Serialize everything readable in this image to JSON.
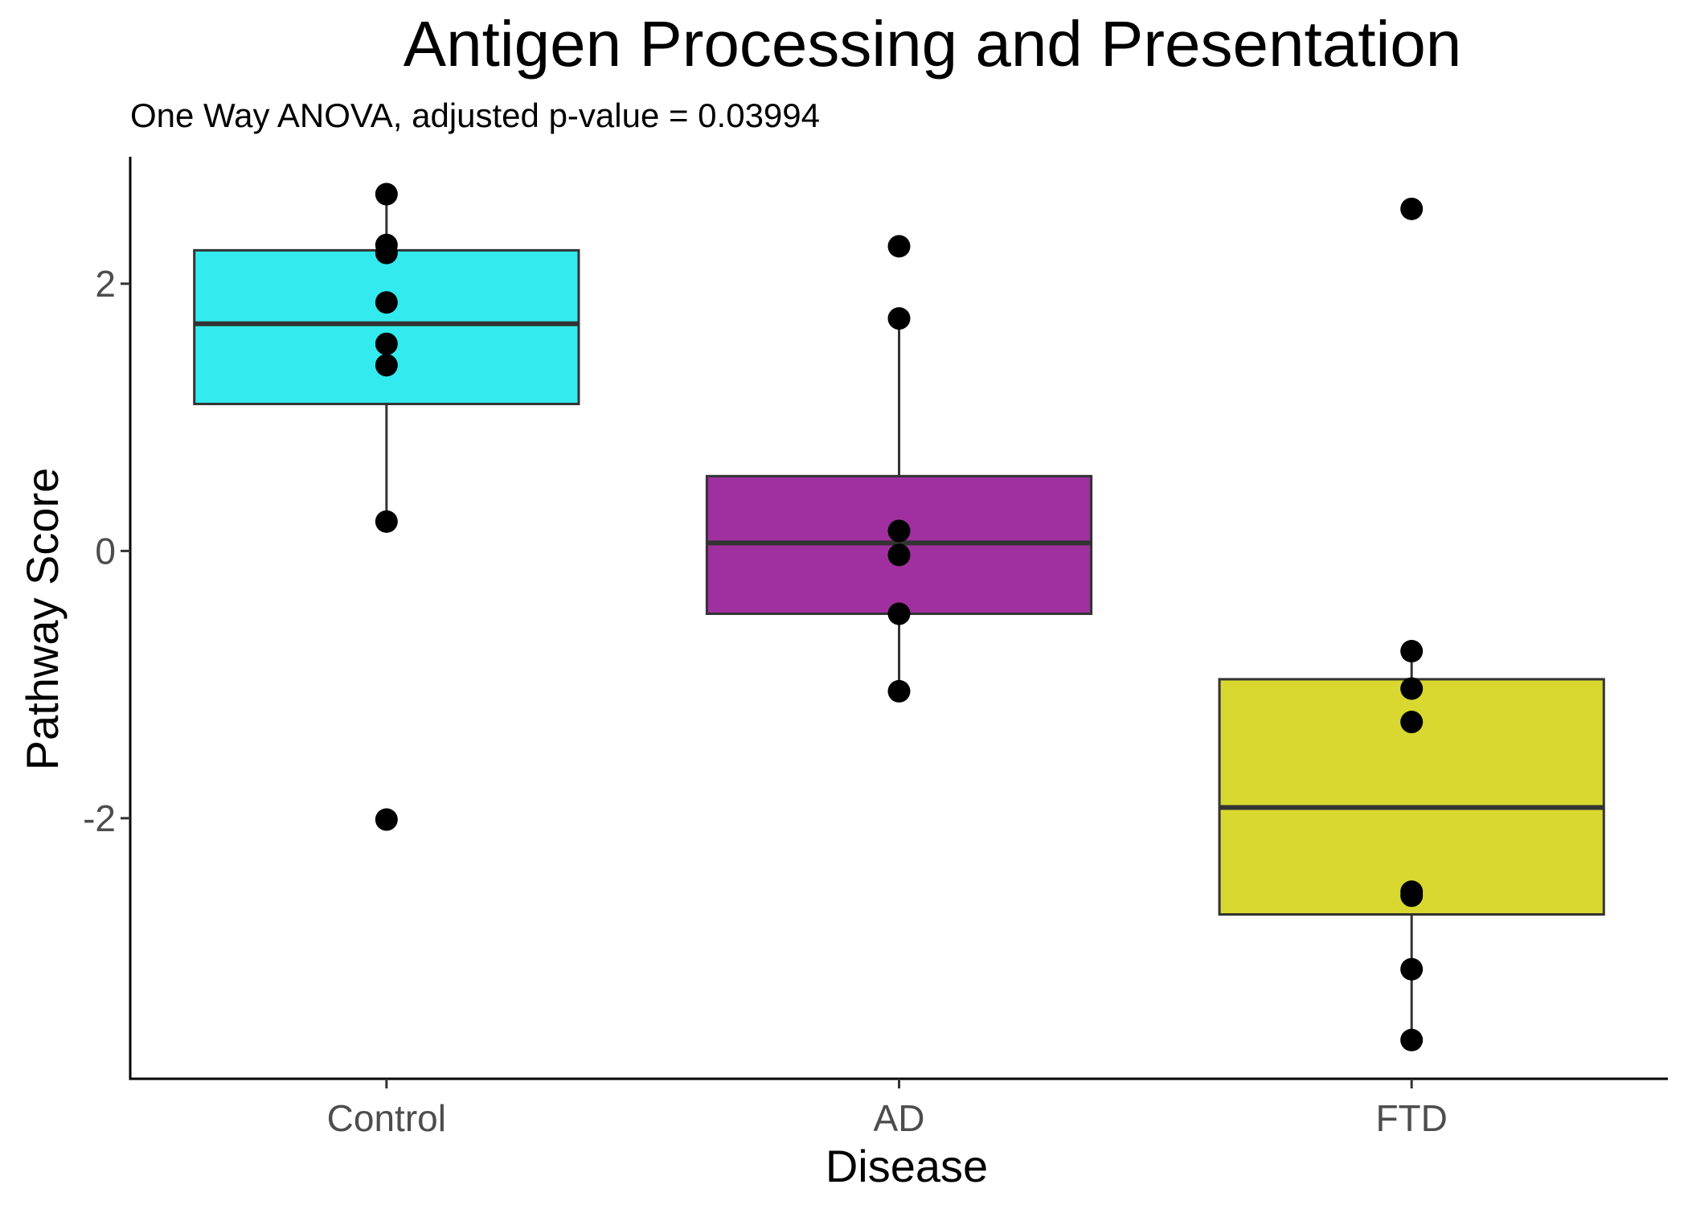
{
  "chart_data": {
    "type": "box",
    "title": "Antigen Processing and Presentation",
    "subtitle": "One Way ANOVA, adjusted p-value = 0.03994",
    "xlabel": "Disease",
    "ylabel": "Pathway Score",
    "ylim": [
      -3.95,
      2.95
    ],
    "yticks": [
      -2,
      0,
      2
    ],
    "ytick_labels": [
      "-2",
      "0",
      "2"
    ],
    "categories": [
      "Control",
      "AD",
      "FTD"
    ],
    "grid": false,
    "legend": "none",
    "boxes": [
      {
        "group": "Control",
        "fill": "#33EAEE",
        "q1": 1.1,
        "median": 1.7,
        "q3": 2.25,
        "whisker_low": 0.22,
        "whisker_high": 2.67,
        "points": [
          2.67,
          2.29,
          2.23,
          1.86,
          1.55,
          1.39,
          0.22,
          -2.01
        ]
      },
      {
        "group": "AD",
        "fill": "#A0309F",
        "q1": -0.47,
        "median": 0.06,
        "q3": 0.56,
        "whisker_low": -1.05,
        "whisker_high": 1.74,
        "points": [
          2.28,
          1.74,
          0.15,
          -0.03,
          -0.47,
          -1.05
        ]
      },
      {
        "group": "FTD",
        "fill": "#D8D830",
        "q1": -2.72,
        "median": -1.92,
        "q3": -0.96,
        "whisker_low": -3.66,
        "whisker_high": -0.75,
        "points": [
          2.56,
          -0.75,
          -1.03,
          -1.28,
          -2.55,
          -2.58,
          -3.13,
          -3.66
        ]
      }
    ]
  }
}
